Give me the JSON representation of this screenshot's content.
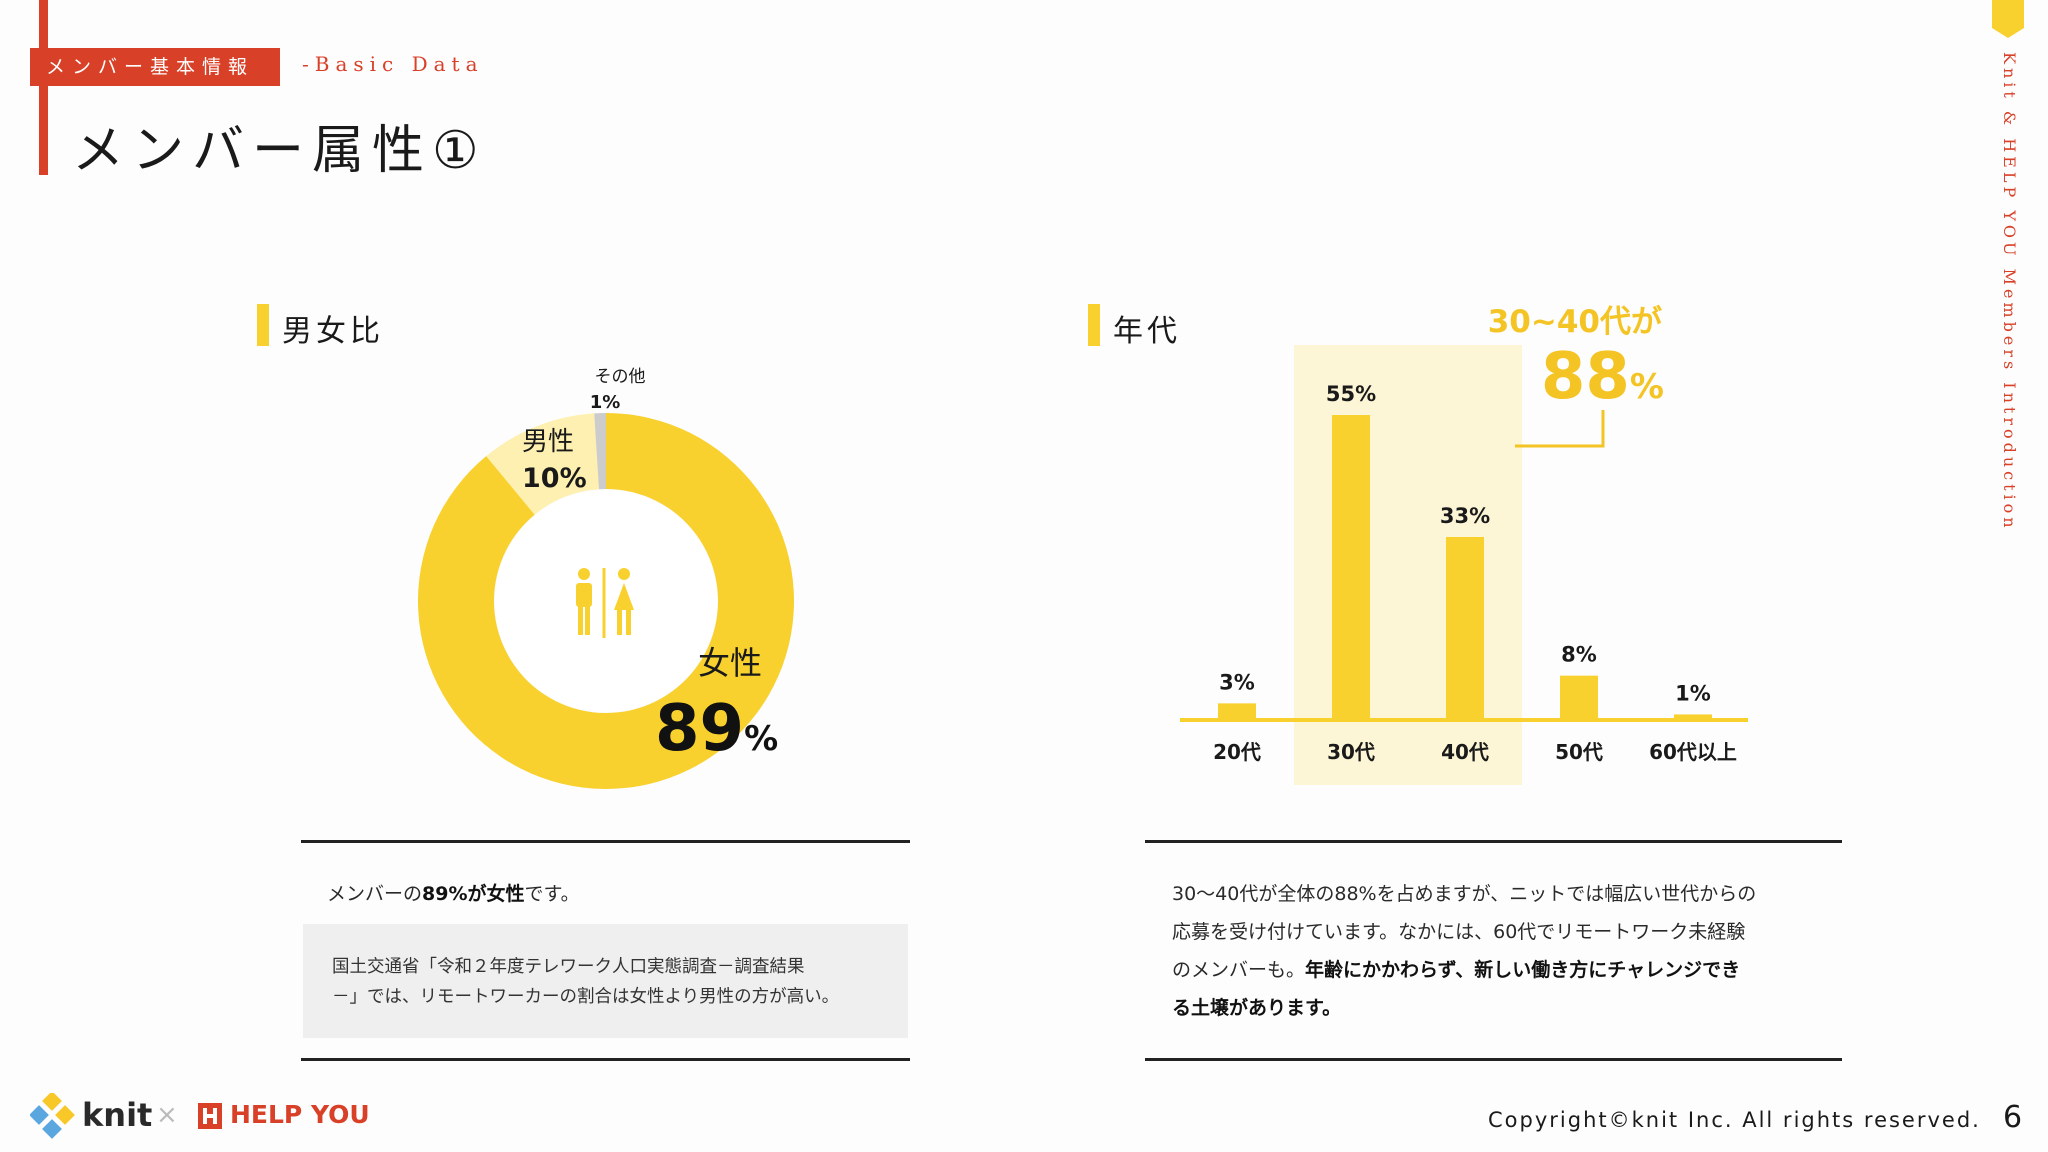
{
  "header": {
    "tag": "メンバー基本情報",
    "tag_en": "-Basic Data",
    "title": "メンバー属性①"
  },
  "side": {
    "vertical_text": "Knit & HELP YOU  Members Introduction"
  },
  "colors": {
    "accent_red": "#d84028",
    "yellow": "#f8d12f",
    "yellow_light": "#fdf0b0",
    "highlight_bg": "#fdf6d6",
    "gray": "#cccccc"
  },
  "gender": {
    "heading": "男女比",
    "icon": "restroom-icon"
  },
  "age": {
    "heading": "年代",
    "callout_line1": "30~40代が",
    "callout_value": "88",
    "callout_unit": "%"
  },
  "chart_data": [
    {
      "type": "pie",
      "title": "男女比",
      "slices": [
        {
          "name": "女性",
          "value": 89,
          "display": "89",
          "unit": "%",
          "color": "#f8d12f"
        },
        {
          "name": "男性",
          "value": 10,
          "display": "10%",
          "color": "#fdf0b0"
        },
        {
          "name": "その他",
          "value": 1,
          "display": "1%",
          "color": "#cccccc"
        }
      ]
    },
    {
      "type": "bar",
      "title": "年代",
      "categories": [
        "20代",
        "30代",
        "40代",
        "50代",
        "60代以上"
      ],
      "values": [
        3,
        55,
        33,
        8,
        1
      ],
      "value_labels": [
        "3%",
        "55%",
        "33%",
        "8%",
        "1%"
      ],
      "highlight_categories": [
        "30代",
        "40代"
      ],
      "ylim": [
        0,
        55
      ]
    }
  ],
  "notes": {
    "gender_pre": "メンバーの",
    "gender_bold": "89%が女性",
    "gender_post": "です。",
    "gray_line1": "国土交通省「令和２年度テレワーク人口実態調査－調査結果",
    "gray_line2": "－」では、リモートワーカーの割合は女性より男性の方が高い。",
    "age_line1": "30〜40代が全体の88%を占めますが、ニットでは幅広い世代からの",
    "age_line2": "応募を受け付けています。なかには、60代でリモートワーク未経験",
    "age_line3_pre": "のメンバーも。",
    "age_line3_bold": "年齢にかかわらず、新しい働き方にチャレンジでき",
    "age_line4_bold": "る土壌があります。"
  },
  "footer": {
    "logo_knit": "knit",
    "logo_x": "×",
    "logo_helpyou": "HELP YOU",
    "copyright": "Copyright©knit Inc. All rights reserved.",
    "page_number": "6"
  }
}
